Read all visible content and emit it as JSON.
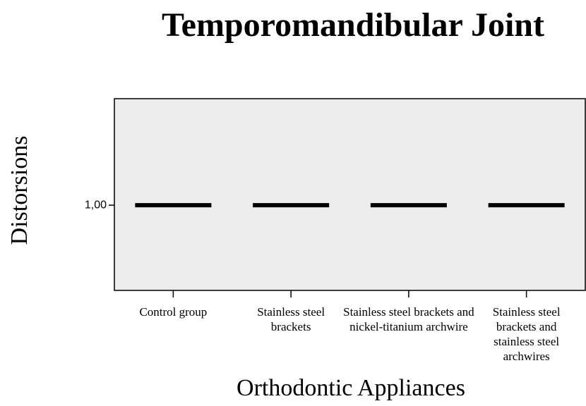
{
  "chart_data": {
    "type": "box",
    "title": "Temporomandibular Joint",
    "x_label": "Orthodontic Appliances",
    "y_label": "Distorsions",
    "categories": [
      "Control group",
      "Stainless steel brackets",
      "Stainless steel brackets and nickel-titanium archwire",
      "Stainless steel brackets and stainless steel archwires"
    ],
    "values": [
      1,
      1,
      1,
      1
    ],
    "color": "#000000",
    "ylim": [
      0.6,
      1.5
    ],
    "yticks": [
      {
        "value": 1,
        "label": "1,00"
      }
    ]
  }
}
